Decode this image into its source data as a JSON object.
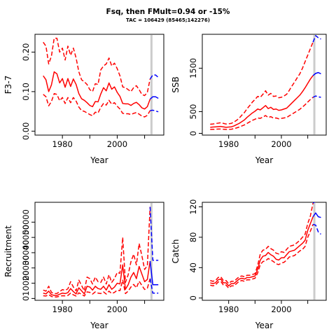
{
  "title": "Fsq, then FMult=0.94 or -15%",
  "subtitle": "TAC = 106429 (85465;142276)",
  "colors": {
    "history": "#ff0000",
    "projection": "#0000ff",
    "marker": "#cccccc"
  },
  "chart_data": [
    {
      "type": "line",
      "name": "fbar",
      "ylabel": "F3-7",
      "xlabel": "Year",
      "xlim": [
        1970,
        2017
      ],
      "ylim": [
        -0.01,
        0.245
      ],
      "yticks": [
        0.0,
        0.1,
        0.2
      ],
      "ytick_labels": [
        "0.00",
        "0.10",
        "0.20"
      ],
      "xticks": [
        1980,
        2000
      ],
      "marker_year": 2012.5,
      "years": [
        1973,
        1974,
        1975,
        1976,
        1977,
        1978,
        1979,
        1980,
        1981,
        1982,
        1983,
        1984,
        1985,
        1986,
        1987,
        1988,
        1989,
        1990,
        1991,
        1992,
        1993,
        1994,
        1995,
        1996,
        1997,
        1998,
        1999,
        2000,
        2001,
        2002,
        2003,
        2004,
        2005,
        2006,
        2007,
        2008,
        2009,
        2010,
        2011,
        2012
      ],
      "median": [
        0.14,
        0.13,
        0.1,
        0.117,
        0.15,
        0.145,
        0.122,
        0.133,
        0.111,
        0.133,
        0.113,
        0.132,
        0.118,
        0.095,
        0.082,
        0.078,
        0.072,
        0.065,
        0.062,
        0.075,
        0.074,
        0.094,
        0.11,
        0.102,
        0.122,
        0.106,
        0.112,
        0.098,
        0.088,
        0.07,
        0.069,
        0.069,
        0.065,
        0.07,
        0.073,
        0.067,
        0.059,
        0.056,
        0.062,
        0.081
      ],
      "upper": [
        0.225,
        0.215,
        0.17,
        0.19,
        0.235,
        0.235,
        0.2,
        0.21,
        0.18,
        0.215,
        0.192,
        0.21,
        0.185,
        0.15,
        0.13,
        0.125,
        0.118,
        0.105,
        0.1,
        0.12,
        0.118,
        0.155,
        0.165,
        0.17,
        0.185,
        0.165,
        0.172,
        0.158,
        0.14,
        0.112,
        0.11,
        0.105,
        0.1,
        0.11,
        0.115,
        0.105,
        0.093,
        0.09,
        0.098,
        0.132
      ],
      "lower": [
        0.093,
        0.087,
        0.064,
        0.075,
        0.095,
        0.093,
        0.077,
        0.085,
        0.07,
        0.085,
        0.072,
        0.085,
        0.076,
        0.061,
        0.052,
        0.05,
        0.046,
        0.042,
        0.039,
        0.048,
        0.046,
        0.06,
        0.07,
        0.066,
        0.078,
        0.068,
        0.072,
        0.063,
        0.056,
        0.045,
        0.044,
        0.044,
        0.042,
        0.045,
        0.047,
        0.043,
        0.038,
        0.036,
        0.04,
        0.052
      ],
      "proj_years": [
        2013,
        2014,
        2015
      ],
      "proj_median": [
        0.087,
        0.087,
        0.083
      ],
      "proj_upper": [
        0.142,
        0.142,
        0.136
      ],
      "proj_lower": [
        0.053,
        0.051,
        0.049
      ]
    },
    {
      "type": "line",
      "name": "ssb",
      "ylabel": "SSB",
      "xlabel": "Year",
      "xlim": [
        1970,
        2017
      ],
      "ylim": [
        -40,
        2280
      ],
      "yticks": [
        0,
        500,
        1500
      ],
      "ytick_labels": [
        "0",
        "500",
        "1500"
      ],
      "xticks": [
        1980,
        2000
      ],
      "marker_year": 2012.5,
      "years": [
        1973,
        1974,
        1975,
        1976,
        1977,
        1978,
        1979,
        1980,
        1981,
        1982,
        1983,
        1984,
        1985,
        1986,
        1987,
        1988,
        1989,
        1990,
        1991,
        1992,
        1993,
        1994,
        1995,
        1996,
        1997,
        1998,
        1999,
        2000,
        2001,
        2002,
        2003,
        2004,
        2005,
        2006,
        2007,
        2008,
        2009,
        2010,
        2011,
        2012
      ],
      "median": [
        140,
        145,
        150,
        155,
        160,
        150,
        140,
        145,
        150,
        170,
        200,
        230,
        270,
        310,
        370,
        420,
        470,
        510,
        560,
        540,
        590,
        640,
        570,
        600,
        550,
        560,
        530,
        540,
        560,
        580,
        640,
        700,
        760,
        820,
        880,
        960,
        1050,
        1150,
        1250,
        1330
      ],
      "upper": [
        210,
        215,
        225,
        235,
        245,
        230,
        215,
        220,
        230,
        260,
        300,
        350,
        420,
        480,
        570,
        640,
        720,
        780,
        850,
        830,
        900,
        980,
        880,
        920,
        850,
        860,
        820,
        830,
        860,
        900,
        990,
        1090,
        1180,
        1280,
        1370,
        1500,
        1650,
        1800,
        1950,
        2100
      ],
      "lower": [
        90,
        92,
        95,
        98,
        100,
        95,
        90,
        92,
        95,
        108,
        125,
        145,
        170,
        195,
        230,
        265,
        300,
        325,
        355,
        345,
        375,
        410,
        365,
        385,
        350,
        355,
        335,
        345,
        355,
        365,
        405,
        440,
        480,
        515,
        555,
        605,
        660,
        720,
        780,
        830
      ],
      "proj_years": [
        2013,
        2014,
        2015
      ],
      "proj_median": [
        1380,
        1400,
        1370
      ],
      "proj_upper": [
        2250,
        2200,
        2170
      ],
      "proj_lower": [
        860,
        840,
        830
      ]
    },
    {
      "type": "line",
      "name": "recruitment",
      "ylabel": "Recruitment",
      "xlabel": "Year",
      "xlim": [
        1970,
        2017
      ],
      "ylim": [
        -1200,
        63000
      ],
      "yticks": [
        0,
        10000,
        20000,
        30000,
        40000,
        50000
      ],
      "ytick_labels": [
        "0",
        "10000",
        "20000",
        "30000",
        "40000",
        "50000"
      ],
      "xticks": [
        1980,
        2000
      ],
      "marker_year": 2012.5,
      "years": [
        1973,
        1974,
        1975,
        1976,
        1977,
        1978,
        1979,
        1980,
        1981,
        1982,
        1983,
        1984,
        1985,
        1986,
        1987,
        1988,
        1989,
        1990,
        1991,
        1992,
        1993,
        1994,
        1995,
        1996,
        1997,
        1998,
        1999,
        2000,
        2001,
        2002,
        2003,
        2004,
        2005,
        2006,
        2007,
        2008,
        2009,
        2010,
        2011,
        2012
      ],
      "median": [
        3500,
        3000,
        4800,
        2500,
        2000,
        2000,
        2800,
        3500,
        3200,
        3800,
        6500,
        4500,
        3000,
        7000,
        5000,
        3000,
        8000,
        7500,
        5500,
        8000,
        6500,
        6000,
        8000,
        5500,
        9000,
        6000,
        7500,
        10000,
        9500,
        22000,
        6000,
        9000,
        14000,
        17000,
        13000,
        21000,
        16000,
        11000,
        12500,
        24500
      ],
      "upper": [
        5500,
        4800,
        8000,
        4000,
        3200,
        3300,
        4500,
        5800,
        5300,
        6300,
        11000,
        7500,
        5000,
        12000,
        8500,
        5000,
        14000,
        13000,
        9500,
        14000,
        11000,
        10500,
        14000,
        9500,
        15500,
        10500,
        13000,
        17000,
        16500,
        40000,
        10500,
        15500,
        24000,
        29000,
        22000,
        36000,
        28000,
        19000,
        21500,
        60000
      ],
      "lower": [
        1800,
        1600,
        2500,
        1300,
        1000,
        1000,
        1500,
        1800,
        1700,
        2000,
        3500,
        2400,
        1600,
        3700,
        2700,
        1600,
        4300,
        4000,
        2900,
        4300,
        3500,
        3200,
        4300,
        2900,
        4800,
        3200,
        4000,
        5400,
        5100,
        12000,
        3200,
        4800,
        7500,
        9200,
        7000,
        11300,
        8600,
        5900,
        6700,
        13000
      ],
      "proj_years": [
        2013,
        2014,
        2015
      ],
      "proj_median": [
        9000,
        9000,
        9000
      ],
      "proj_upper": [
        25000,
        25000,
        25000
      ],
      "proj_lower": [
        3500,
        3500,
        3500
      ]
    },
    {
      "type": "line",
      "name": "catch",
      "ylabel": "Catch",
      "xlabel": "Year",
      "xlim": [
        1970,
        2017
      ],
      "ylim": [
        -3,
        126
      ],
      "yticks": [
        0,
        40,
        80,
        120
      ],
      "ytick_labels": [
        "0",
        "40",
        "80",
        "120"
      ],
      "xticks": [
        1980,
        2000
      ],
      "marker_year": 2012.5,
      "years": [
        1973,
        1974,
        1975,
        1976,
        1977,
        1978,
        1979,
        1980,
        1981,
        1982,
        1983,
        1984,
        1985,
        1986,
        1987,
        1988,
        1989,
        1990,
        1991,
        1992,
        1993,
        1994,
        1995,
        1996,
        1997,
        1998,
        1999,
        2000,
        2001,
        2002,
        2003,
        2004,
        2005,
        2006,
        2007,
        2008,
        2009,
        2010,
        2011,
        2012
      ],
      "median": [
        20,
        19,
        20,
        24,
        25,
        20,
        20,
        16,
        19,
        19,
        22,
        25,
        26,
        25,
        27,
        27,
        28,
        29,
        38,
        50,
        55,
        56,
        60,
        57,
        55,
        51,
        50,
        53,
        53,
        57,
        61,
        62,
        63,
        66,
        69,
        72,
        76,
        89,
        98,
        107
      ],
      "upper": [
        23,
        22,
        23,
        27,
        28,
        23,
        23,
        19,
        22,
        22,
        25,
        28,
        29,
        28,
        30,
        30,
        31,
        32,
        43,
        58,
        63,
        64,
        68,
        65,
        63,
        59,
        58,
        61,
        60,
        64,
        68,
        69,
        70,
        73,
        76,
        80,
        84,
        98,
        108,
        125
      ],
      "lower": [
        17,
        16,
        17,
        21,
        22,
        17,
        17,
        13,
        16,
        16,
        19,
        22,
        23,
        22,
        24,
        24,
        25,
        26,
        33,
        44,
        48,
        49,
        52,
        50,
        48,
        45,
        44,
        46,
        47,
        50,
        54,
        55,
        56,
        59,
        62,
        64,
        68,
        80,
        88,
        97
      ],
      "proj_years": [
        2013,
        2014,
        2015
      ],
      "proj_median": [
        112,
        107,
        106
      ],
      "proj_upper": [
        127,
        127,
        127
      ],
      "proj_lower": [
        96,
        87,
        84
      ]
    }
  ]
}
